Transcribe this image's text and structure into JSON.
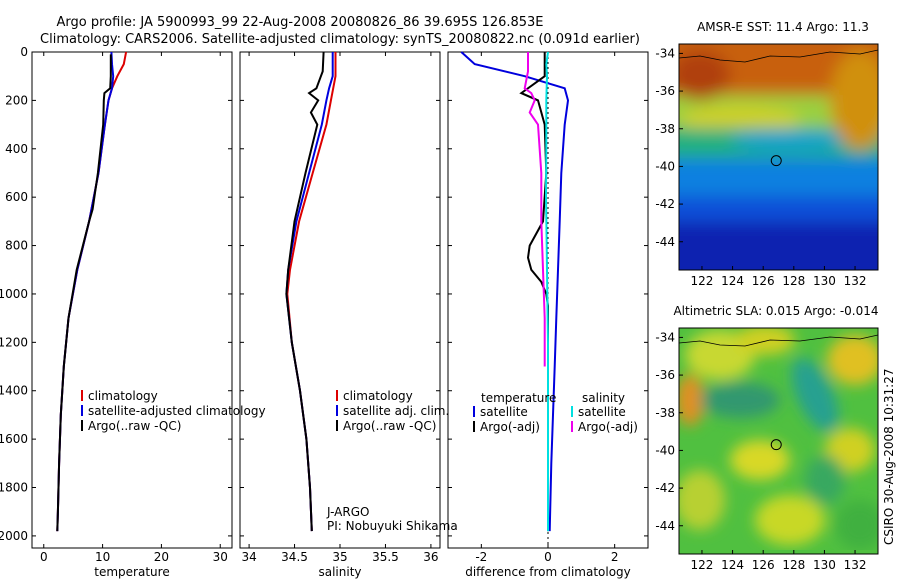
{
  "header": {
    "title_line1": "Argo profile: JA 5900993_99 22-Aug-2008 20080826_86 39.695S 126.853E",
    "title_line2": "Climatology: CARS2006. Satellite-adjusted climatology: synTS_20080822.nc (0.091d earlier)"
  },
  "side_caption": "CSIRO 30-Aug-2008 10:31:27",
  "chart_data": [
    {
      "type": "line",
      "panel": "temperature",
      "xlabel": "temperature",
      "ylabel": "",
      "xlim": [
        -2,
        32
      ],
      "ylim": [
        2050,
        0
      ],
      "xticks": [
        0,
        10,
        20,
        30
      ],
      "yticks": [
        0,
        200,
        400,
        600,
        800,
        1000,
        1200,
        1400,
        1600,
        1800,
        2000
      ],
      "series": [
        {
          "name": "climatology",
          "color": "#dd0000",
          "depth": [
            0,
            50,
            100,
            150,
            200,
            300,
            500,
            700,
            900,
            1100,
            1300,
            1500,
            1700,
            1900,
            1980
          ],
          "values": [
            14.0,
            13.6,
            12.5,
            11.6,
            11.0,
            10.4,
            9.3,
            7.7,
            5.7,
            4.2,
            3.4,
            2.9,
            2.6,
            2.4,
            2.3
          ]
        },
        {
          "name": "satellite-adjusted climatology",
          "color": "#0000dd",
          "depth": [
            0,
            50,
            100,
            150,
            200,
            300,
            500,
            700,
            900,
            1100,
            1300,
            1500,
            1700,
            1900,
            1980
          ],
          "values": [
            11.5,
            11.6,
            11.8,
            11.6,
            11.0,
            10.4,
            9.3,
            7.7,
            5.7,
            4.2,
            3.4,
            2.9,
            2.6,
            2.4,
            2.3
          ]
        },
        {
          "name": "Argo(..raw -QC)",
          "color": "#000000",
          "depth": [
            10,
            50,
            100,
            150,
            170,
            200,
            300,
            500,
            650,
            700,
            900,
            1100,
            1300,
            1500,
            1700,
            1900,
            1980
          ],
          "values": [
            11.4,
            11.4,
            11.4,
            11.3,
            10.3,
            10.2,
            10.1,
            9.2,
            8.3,
            7.7,
            5.6,
            4.2,
            3.4,
            2.9,
            2.6,
            2.4,
            2.3
          ]
        }
      ],
      "legend": [
        "climatology",
        "satellite-adjusted climatology",
        "Argo(..raw -QC)"
      ]
    },
    {
      "type": "line",
      "panel": "salinity",
      "xlabel": "salinity",
      "xlim": [
        33.9,
        36.1
      ],
      "ylim": [
        2050,
        0
      ],
      "xticks": [
        34,
        34.5,
        35,
        35.5,
        36
      ],
      "xtick_labels": [
        "34",
        "34.5",
        "35",
        "35.5",
        "36"
      ],
      "series": [
        {
          "name": "climatology",
          "color": "#dd0000",
          "depth": [
            0,
            100,
            200,
            300,
            500,
            700,
            900,
            1000,
            1200,
            1400,
            1600,
            1800,
            1980
          ],
          "values": [
            34.95,
            34.95,
            34.9,
            34.85,
            34.7,
            34.55,
            34.45,
            34.42,
            34.47,
            34.56,
            34.63,
            34.67,
            34.69
          ]
        },
        {
          "name": "satellite adj. clim.",
          "color": "#0000dd",
          "depth": [
            0,
            100,
            150,
            200,
            300,
            500,
            700,
            900,
            1000,
            1200,
            1400,
            1600,
            1800,
            1980
          ],
          "values": [
            34.92,
            34.92,
            34.88,
            34.85,
            34.8,
            34.66,
            34.52,
            34.43,
            34.41,
            34.47,
            34.56,
            34.63,
            34.67,
            34.69
          ]
        },
        {
          "name": "Argo(..raw -QC)",
          "color": "#000000",
          "depth": [
            0,
            80,
            100,
            150,
            170,
            200,
            250,
            300,
            500,
            700,
            900,
            1000,
            1200,
            1400,
            1600,
            1800,
            1980
          ],
          "values": [
            34.82,
            34.81,
            34.79,
            34.74,
            34.66,
            34.76,
            34.68,
            34.75,
            34.62,
            34.5,
            34.43,
            34.41,
            34.47,
            34.56,
            34.63,
            34.67,
            34.69
          ]
        }
      ],
      "legend": [
        "climatology",
        "satellite adj. clim.",
        "Argo(..raw -QC)"
      ],
      "annotations": [
        "J-ARGO",
        "PI: Nobuyuki Shikama"
      ]
    },
    {
      "type": "line",
      "panel": "difference",
      "xlabel": "difference from climatology",
      "xlim": [
        -3,
        3
      ],
      "ylim": [
        2050,
        0
      ],
      "xticks": [
        -2,
        0,
        2
      ],
      "series": [
        {
          "name": "temperature satellite",
          "color": "#0000dd",
          "depth": [
            0,
            50,
            100,
            150,
            200,
            300,
            400,
            500,
            700,
            900,
            1100,
            1300,
            1500,
            1700,
            1980
          ],
          "values": [
            -2.6,
            -2.2,
            -0.7,
            0.5,
            0.6,
            0.5,
            0.45,
            0.4,
            0.35,
            0.3,
            0.25,
            0.2,
            0.15,
            0.1,
            0.05
          ]
        },
        {
          "name": "temperature Argo(-adj)",
          "color": "#000000",
          "depth": [
            0,
            100,
            170,
            200,
            300,
            500,
            700,
            800,
            850,
            900,
            950,
            1000,
            1050,
            1100,
            1300,
            1500,
            1700,
            1980
          ],
          "values": [
            -0.1,
            -0.1,
            -0.8,
            -0.3,
            -0.1,
            -0.05,
            -0.15,
            -0.55,
            -0.6,
            -0.5,
            -0.2,
            -0.05,
            0.0,
            0.0,
            0.0,
            0.0,
            0.0,
            0.0
          ]
        },
        {
          "name": "salinity satellite",
          "color": "#00e0e0",
          "depth": [
            0,
            50,
            100,
            200,
            400,
            600,
            800,
            1000,
            1200,
            1400,
            1600,
            1800,
            1980
          ],
          "values": [
            0.0,
            -0.05,
            -0.03,
            -0.05,
            -0.05,
            -0.06,
            -0.04,
            -0.02,
            0.0,
            0.0,
            0.0,
            0.0,
            0.0
          ]
        },
        {
          "name": "salinity Argo(-adj)",
          "color": "#ee00ee",
          "depth": [
            0,
            80,
            150,
            170,
            200,
            250,
            300,
            500,
            700,
            900,
            1100,
            1300
          ],
          "values": [
            -0.6,
            -0.6,
            -0.7,
            -0.5,
            -0.4,
            -0.55,
            -0.3,
            -0.2,
            -0.2,
            -0.15,
            -0.1,
            -0.1
          ]
        }
      ],
      "legend_headers": [
        "temperature",
        "salinity"
      ],
      "legend": [
        "satellite",
        "Argo(-adj)",
        "satellite",
        "Argo(-adj)"
      ]
    },
    {
      "type": "heatmap",
      "panel": "sst",
      "title": "AMSR-E SST: 11.4 Argo: 11.3",
      "xlim": [
        120.5,
        133.5
      ],
      "ylim": [
        -45.5,
        -33.5
      ],
      "xticks": [
        122,
        124,
        126,
        128,
        130,
        132
      ],
      "yticks": [
        -34,
        -36,
        -38,
        -40,
        -42,
        -44
      ],
      "marker": {
        "lon": 126.853,
        "lat": -39.695
      }
    },
    {
      "type": "heatmap",
      "panel": "sla",
      "title": "Altimetric SLA: 0.015 Argo: -0.014",
      "xlim": [
        120.5,
        133.5
      ],
      "ylim": [
        -45.5,
        -33.5
      ],
      "xticks": [
        122,
        124,
        126,
        128,
        130,
        132
      ],
      "yticks": [
        -34,
        -36,
        -38,
        -40,
        -42,
        -44
      ],
      "marker": {
        "lon": 126.853,
        "lat": -39.695
      }
    }
  ]
}
